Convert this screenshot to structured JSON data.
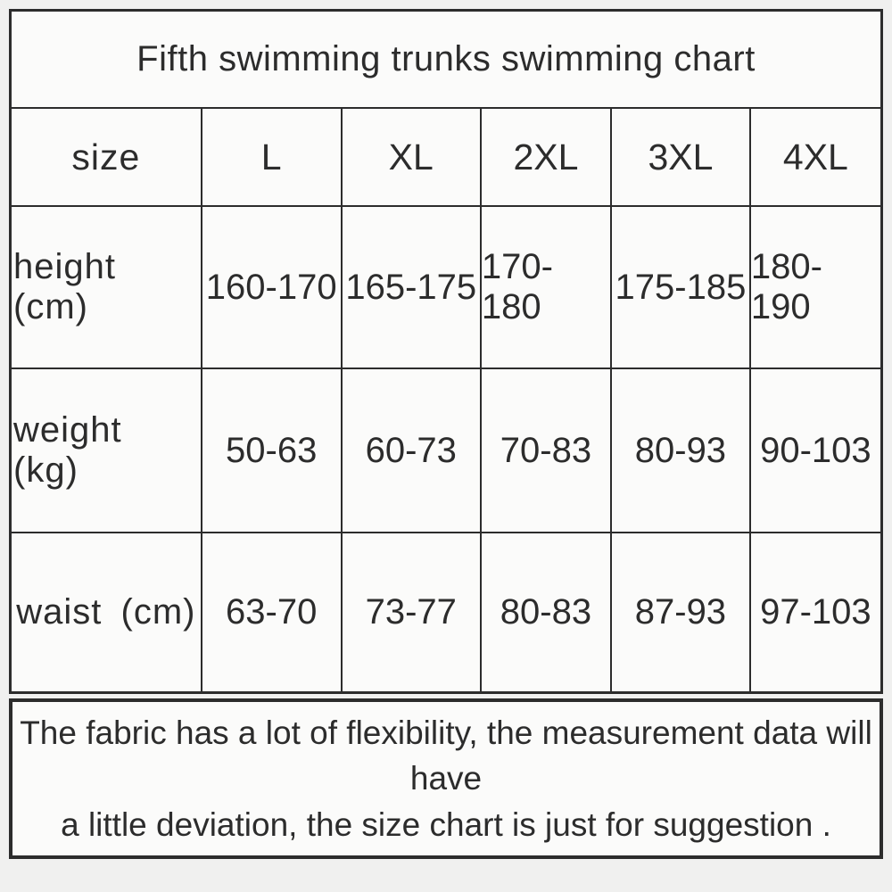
{
  "chart_data": {
    "type": "table",
    "title": "Fifth swimming trunks swimming chart",
    "columns": [
      "size",
      "L",
      "XL",
      "2XL",
      "3XL",
      "4XL"
    ],
    "rows": [
      [
        "height (cm)",
        "160-170",
        "165-175",
        "170-180",
        "175-185",
        "180-190"
      ],
      [
        "weight (kg)",
        "50-63",
        "60-73",
        "70-83",
        "80-93",
        "90-103"
      ],
      [
        "waist (cm)",
        "63-70",
        "73-77",
        "80-83",
        "87-93",
        "97-103"
      ]
    ],
    "note": "The fabric has a lot of flexibility, the measurement data will have a little deviation, the size chart is just for suggestion ."
  },
  "note": {
    "line1": "The fabric has a lot of flexibility, the measurement data will have",
    "line2": "a little deviation, the size chart is just for suggestion ."
  },
  "colors": {
    "border": "#2c2c2c",
    "text": "#2c2c2c",
    "cell_bg": "#fbfbfa",
    "page_bg": "#f0f0ef"
  }
}
